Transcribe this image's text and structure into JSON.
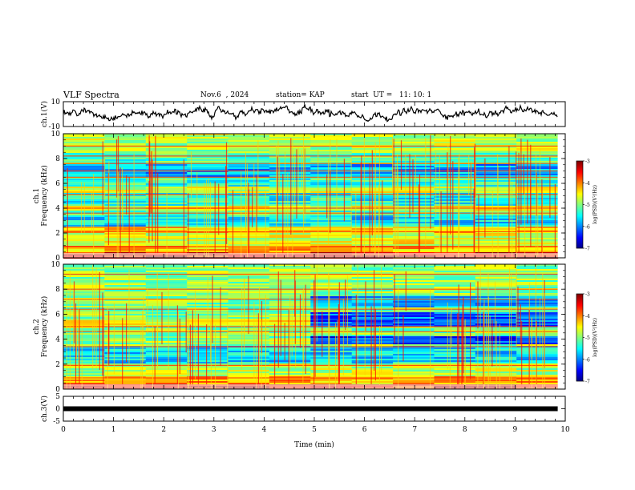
{
  "header": {
    "title": "VLF Spectra",
    "date": "Nov.6  , 2024",
    "station": "station= KAP",
    "start": "start  UT =   11: 10: 1"
  },
  "chart_data": [
    {
      "type": "line",
      "panel": "ch1-waveform",
      "ylabel": "ch.1(V)",
      "ylim": [
        -10,
        10
      ],
      "yticks": [
        "10",
        "-10"
      ],
      "xlim": [
        0,
        10
      ],
      "description_values": {
        "typical_range": [
          -3,
          5
        ],
        "x_end": 9.85
      }
    },
    {
      "type": "heatmap",
      "panel": "ch1-spectrogram",
      "ylabel": "ch.1\nFrequency  (kHz)",
      "ylim": [
        0,
        10
      ],
      "yticks": [
        "0",
        "2",
        "4",
        "6",
        "8",
        "10"
      ],
      "xlim": [
        0,
        10
      ],
      "x_end": 9.85,
      "colorbar": {
        "label": "log(PSD)(V²/Hz)",
        "range": [
          -7,
          -3
        ],
        "ticks": [
          "-3",
          "-4",
          "-5",
          "-6",
          "-7"
        ]
      },
      "bands": [
        {
          "from": 0.0,
          "to": 0.4,
          "level": -3.5
        },
        {
          "from": 0.4,
          "to": 1.0,
          "level": -4.2
        },
        {
          "from": 1.0,
          "to": 2.0,
          "level": -4.6
        },
        {
          "from": 2.0,
          "to": 2.5,
          "level": -4.3
        },
        {
          "from": 2.5,
          "to": 3.4,
          "level": -5.6
        },
        {
          "from": 3.4,
          "to": 3.8,
          "level": -5.2
        },
        {
          "from": 3.8,
          "to": 4.2,
          "level": -4.6
        },
        {
          "from": 4.2,
          "to": 5.2,
          "level": -5.4
        },
        {
          "from": 5.2,
          "to": 5.8,
          "level": -4.7
        },
        {
          "from": 5.8,
          "to": 6.5,
          "level": -5.3
        },
        {
          "from": 6.5,
          "to": 7.6,
          "level": -5.8
        },
        {
          "from": 7.6,
          "to": 8.4,
          "level": -5.2
        },
        {
          "from": 8.4,
          "to": 10.0,
          "level": -4.8
        }
      ],
      "lines_khz": [
        0.3,
        0.9,
        2.1,
        3.6,
        4.0,
        5.1,
        6.5,
        7.0,
        7.6,
        8.2,
        9.0
      ]
    },
    {
      "type": "heatmap",
      "panel": "ch2-spectrogram",
      "ylabel": "ch.2\nFrequency  (kHz)",
      "ylim": [
        0,
        10
      ],
      "yticks": [
        "0",
        "2",
        "4",
        "6",
        "8",
        "10"
      ],
      "xlim": [
        0,
        10
      ],
      "x_end": 9.85,
      "change_at": 5.3,
      "colorbar": {
        "label": "log(PSD)(V²/Hz)",
        "range": [
          -7,
          -3
        ],
        "ticks": [
          "-3",
          "-4",
          "-5",
          "-6",
          "-7"
        ]
      },
      "bands": [
        {
          "from": 0.0,
          "to": 0.4,
          "level": -3.5
        },
        {
          "from": 0.4,
          "to": 1.0,
          "level": -4.2
        },
        {
          "from": 1.0,
          "to": 2.0,
          "level": -4.8
        },
        {
          "from": 2.0,
          "to": 3.4,
          "level": -5.6
        },
        {
          "from": 3.4,
          "to": 4.0,
          "level": -4.9
        },
        {
          "from": 4.0,
          "to": 5.0,
          "level": -5.0
        },
        {
          "from": 5.0,
          "to": 5.6,
          "level": -4.6
        },
        {
          "from": 5.6,
          "to": 7.0,
          "level": -5.0
        },
        {
          "from": 7.0,
          "to": 10.0,
          "level": -4.9
        }
      ],
      "bands_after_change": [
        {
          "from": 3.6,
          "to": 4.2,
          "level": -6.3
        },
        {
          "from": 5.0,
          "to": 6.2,
          "level": -6.1
        },
        {
          "from": 6.5,
          "to": 7.5,
          "level": -5.9
        }
      ],
      "lines_khz": [
        0.3,
        0.9,
        1.9,
        3.4,
        4.6,
        5.0,
        6.4,
        7.2,
        8.0,
        9.2
      ]
    },
    {
      "type": "line",
      "panel": "ch3-waveform",
      "ylabel": "ch.3(V)",
      "ylim": [
        -5,
        5
      ],
      "yticks": [
        "5",
        "0",
        "-5"
      ],
      "xlim": [
        0,
        10
      ],
      "xticks": [
        "0",
        "1",
        "2",
        "3",
        "4",
        "5",
        "6",
        "7",
        "8",
        "9",
        "10"
      ],
      "xlabel": "Time  (min)",
      "value": 0,
      "x_end": 9.85
    }
  ],
  "colors": {
    "lo": "#0000ff",
    "hi": "#ff0000"
  }
}
